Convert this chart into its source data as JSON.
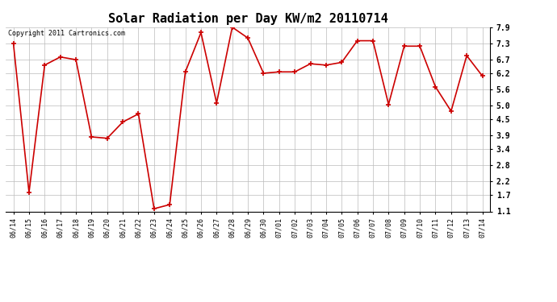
{
  "title": "Solar Radiation per Day KW/m2 20110714",
  "copyright": "Copyright 2011 Cartronics.com",
  "dates": [
    "06/14",
    "06/15",
    "06/16",
    "06/17",
    "06/18",
    "06/19",
    "06/20",
    "06/21",
    "06/22",
    "06/23",
    "06/24",
    "06/25",
    "06/26",
    "06/27",
    "06/28",
    "06/29",
    "06/30",
    "07/01",
    "07/02",
    "07/03",
    "07/04",
    "07/05",
    "07/06",
    "07/07",
    "07/08",
    "07/09",
    "07/10",
    "07/11",
    "07/12",
    "07/13",
    "07/14"
  ],
  "values": [
    7.3,
    1.8,
    6.5,
    6.8,
    6.7,
    3.85,
    3.8,
    4.4,
    4.7,
    1.2,
    1.35,
    6.25,
    7.7,
    5.1,
    7.9,
    7.5,
    6.2,
    6.25,
    6.25,
    6.55,
    6.5,
    6.6,
    7.4,
    7.4,
    5.05,
    7.2,
    7.2,
    5.7,
    4.8,
    6.85,
    6.1
  ],
  "line_color": "#cc0000",
  "marker_color": "#cc0000",
  "bg_color": "#ffffff",
  "grid_color": "#bbbbbb",
  "yticks": [
    1.1,
    1.7,
    2.2,
    2.8,
    3.4,
    3.9,
    4.5,
    5.0,
    5.6,
    6.2,
    6.7,
    7.3,
    7.9
  ],
  "ylim": [
    1.1,
    7.9
  ],
  "title_fontsize": 11,
  "copyright_fontsize": 6,
  "tick_fontsize": 6,
  "ytick_fontsize": 7
}
